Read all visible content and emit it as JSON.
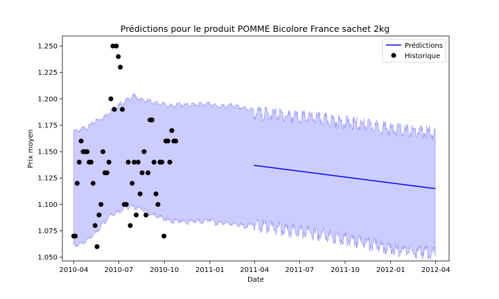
{
  "chart_data": {
    "type": "line",
    "title": "Prédictions pour le produit POMME Bicolore France sachet 2kg",
    "xlabel": "Date",
    "ylabel": "Prix moyen",
    "xlim": [
      "2010-03-09",
      "2012-04-28"
    ],
    "ylim": [
      1.0465,
      1.2595
    ],
    "x_ticks": [
      "2010-04",
      "2010-07",
      "2010-10",
      "2011-01",
      "2011-04",
      "2011-07",
      "2011-10",
      "2012-01",
      "2012-04"
    ],
    "y_ticks": [
      "1.050",
      "1.075",
      "1.100",
      "1.125",
      "1.150",
      "1.175",
      "1.200",
      "1.225",
      "1.250"
    ],
    "legend": {
      "position": "top-right",
      "entries": [
        "Prédictions",
        "Historique"
      ]
    },
    "grid": false,
    "colors": {
      "prediction": "#0000ff",
      "interval": "#ccccff",
      "historique": "#000000"
    },
    "series": [
      {
        "name": "Historique",
        "kind": "scatter",
        "points": [
          [
            "2010-04-01",
            1.07
          ],
          [
            "2010-04-04",
            1.07
          ],
          [
            "2010-04-08",
            1.12
          ],
          [
            "2010-04-12",
            1.14
          ],
          [
            "2010-04-16",
            1.16
          ],
          [
            "2010-04-20",
            1.15
          ],
          [
            "2010-04-24",
            1.15
          ],
          [
            "2010-04-28",
            1.15
          ],
          [
            "2010-05-02",
            1.14
          ],
          [
            "2010-05-06",
            1.14
          ],
          [
            "2010-05-10",
            1.12
          ],
          [
            "2010-05-14",
            1.08
          ],
          [
            "2010-05-18",
            1.06
          ],
          [
            "2010-05-22",
            1.09
          ],
          [
            "2010-05-26",
            1.1
          ],
          [
            "2010-05-30",
            1.15
          ],
          [
            "2010-06-03",
            1.13
          ],
          [
            "2010-06-07",
            1.13
          ],
          [
            "2010-06-11",
            1.14
          ],
          [
            "2010-06-15",
            1.2
          ],
          [
            "2010-06-19",
            1.25
          ],
          [
            "2010-06-22",
            1.19
          ],
          [
            "2010-06-26",
            1.25
          ],
          [
            "2010-06-30",
            1.24
          ],
          [
            "2010-07-04",
            1.23
          ],
          [
            "2010-07-08",
            1.19
          ],
          [
            "2010-07-12",
            1.1
          ],
          [
            "2010-07-16",
            1.1
          ],
          [
            "2010-07-20",
            1.14
          ],
          [
            "2010-07-24",
            1.08
          ],
          [
            "2010-07-28",
            1.12
          ],
          [
            "2010-08-01",
            1.14
          ],
          [
            "2010-08-05",
            1.09
          ],
          [
            "2010-08-09",
            1.14
          ],
          [
            "2010-08-13",
            1.11
          ],
          [
            "2010-08-17",
            1.13
          ],
          [
            "2010-08-21",
            1.15
          ],
          [
            "2010-08-25",
            1.09
          ],
          [
            "2010-08-29",
            1.13
          ],
          [
            "2010-09-02",
            1.18
          ],
          [
            "2010-09-06",
            1.18
          ],
          [
            "2010-09-10",
            1.14
          ],
          [
            "2010-09-14",
            1.11
          ],
          [
            "2010-09-18",
            1.1
          ],
          [
            "2010-09-22",
            1.14
          ],
          [
            "2010-09-26",
            1.14
          ],
          [
            "2010-09-30",
            1.07
          ],
          [
            "2010-10-04",
            1.16
          ],
          [
            "2010-10-08",
            1.16
          ],
          [
            "2010-10-12",
            1.14
          ],
          [
            "2010-10-16",
            1.17
          ],
          [
            "2010-10-20",
            1.16
          ],
          [
            "2010-10-24",
            1.16
          ]
        ]
      },
      {
        "name": "Prédictions",
        "kind": "line",
        "points": [
          [
            "2011-03-31",
            1.137
          ],
          [
            "2012-03-31",
            1.115
          ]
        ]
      },
      {
        "name": "",
        "kind": "band",
        "points": [
          [
            "2010-04-01",
            1.063,
            1.17
          ],
          [
            "2010-04-15",
            1.064,
            1.172
          ],
          [
            "2010-05-01",
            1.068,
            1.175
          ],
          [
            "2010-05-15",
            1.074,
            1.18
          ],
          [
            "2010-06-01",
            1.084,
            1.184
          ],
          [
            "2010-06-15",
            1.091,
            1.19
          ],
          [
            "2010-07-01",
            1.094,
            1.195
          ],
          [
            "2010-07-15",
            1.098,
            1.199
          ],
          [
            "2010-08-01",
            1.099,
            1.204
          ],
          [
            "2010-08-15",
            1.097,
            1.2
          ],
          [
            "2010-09-01",
            1.093,
            1.199
          ],
          [
            "2010-09-15",
            1.09,
            1.197
          ],
          [
            "2010-10-01",
            1.088,
            1.196
          ],
          [
            "2010-10-15",
            1.085,
            1.194
          ],
          [
            "2010-11-01",
            1.086,
            1.196
          ],
          [
            "2010-11-15",
            1.084,
            1.195
          ],
          [
            "2010-12-01",
            1.086,
            1.196
          ],
          [
            "2010-12-15",
            1.085,
            1.196
          ],
          [
            "2011-01-01",
            1.087,
            1.197
          ],
          [
            "2011-01-15",
            1.083,
            1.194
          ],
          [
            "2011-02-01",
            1.084,
            1.194
          ],
          [
            "2011-02-15",
            1.083,
            1.195
          ],
          [
            "2011-03-01",
            1.082,
            1.193
          ],
          [
            "2011-03-15",
            1.08,
            1.192
          ],
          [
            "2011-04-01",
            1.084,
            1.19
          ],
          [
            "2011-05-01",
            1.082,
            1.189
          ],
          [
            "2011-06-01",
            1.08,
            1.188
          ],
          [
            "2011-07-01",
            1.078,
            1.186
          ],
          [
            "2011-08-01",
            1.076,
            1.185
          ],
          [
            "2011-09-01",
            1.074,
            1.183
          ],
          [
            "2011-10-01",
            1.071,
            1.181
          ],
          [
            "2011-11-01",
            1.068,
            1.179
          ],
          [
            "2011-12-01",
            1.065,
            1.177
          ],
          [
            "2012-01-01",
            1.062,
            1.175
          ],
          [
            "2012-02-01",
            1.06,
            1.173
          ],
          [
            "2012-03-01",
            1.058,
            1.172
          ],
          [
            "2012-03-31",
            1.057,
            1.171
          ]
        ]
      }
    ]
  }
}
